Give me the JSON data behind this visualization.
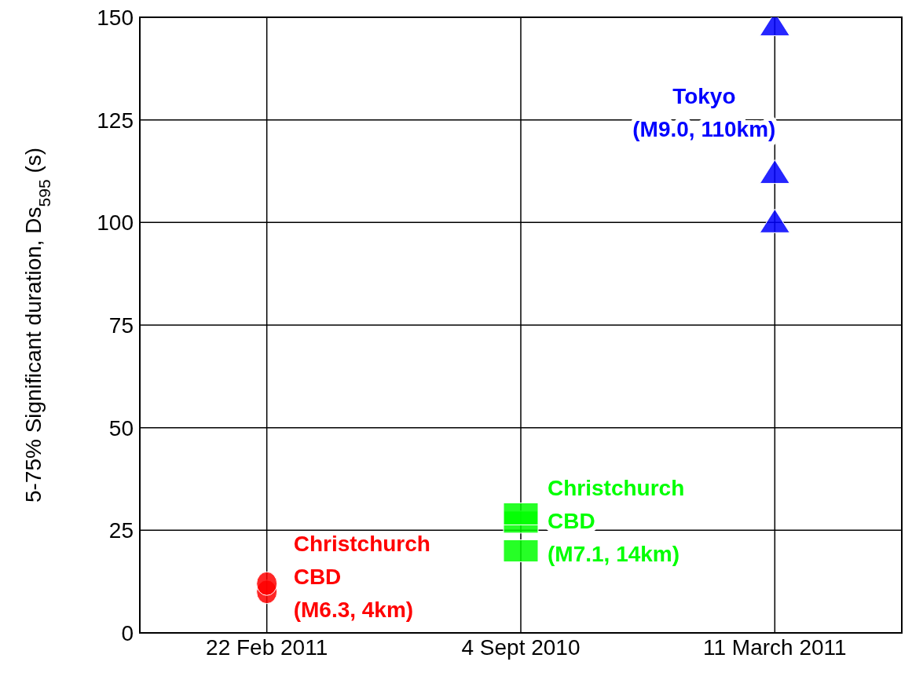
{
  "chart_data": {
    "type": "scatter",
    "ylabel": "5-75% Significant duration, Ds$_{595}$ (s)",
    "categories": [
      "22 Feb 2011",
      "4 Sept 2010",
      "11 March 2011"
    ],
    "ylim": [
      0,
      150
    ],
    "yticks": [
      0,
      25,
      50,
      75,
      100,
      125,
      150
    ],
    "grid": true,
    "series": [
      {
        "name": "Christchurch CBD (M6.3, 4km)",
        "color": "#ff0000",
        "marker": "circle",
        "x": [
          "22 Feb 2011",
          "22 Feb 2011"
        ],
        "values": [
          10,
          12
        ]
      },
      {
        "name": "Christchurch CBD (M7.1, 14km)",
        "color": "#00ff00",
        "marker": "square",
        "x": [
          "4 Sept 2010",
          "4 Sept 2010",
          "4 Sept 2010"
        ],
        "values": [
          20,
          27,
          29
        ]
      },
      {
        "name": "Tokyo (M9.0, 110km)",
        "color": "#0000ff",
        "marker": "triangle",
        "x": [
          "11 March 2011",
          "11 March 2011",
          "11 March 2011"
        ],
        "values": [
          100,
          112,
          148
        ]
      }
    ]
  }
}
